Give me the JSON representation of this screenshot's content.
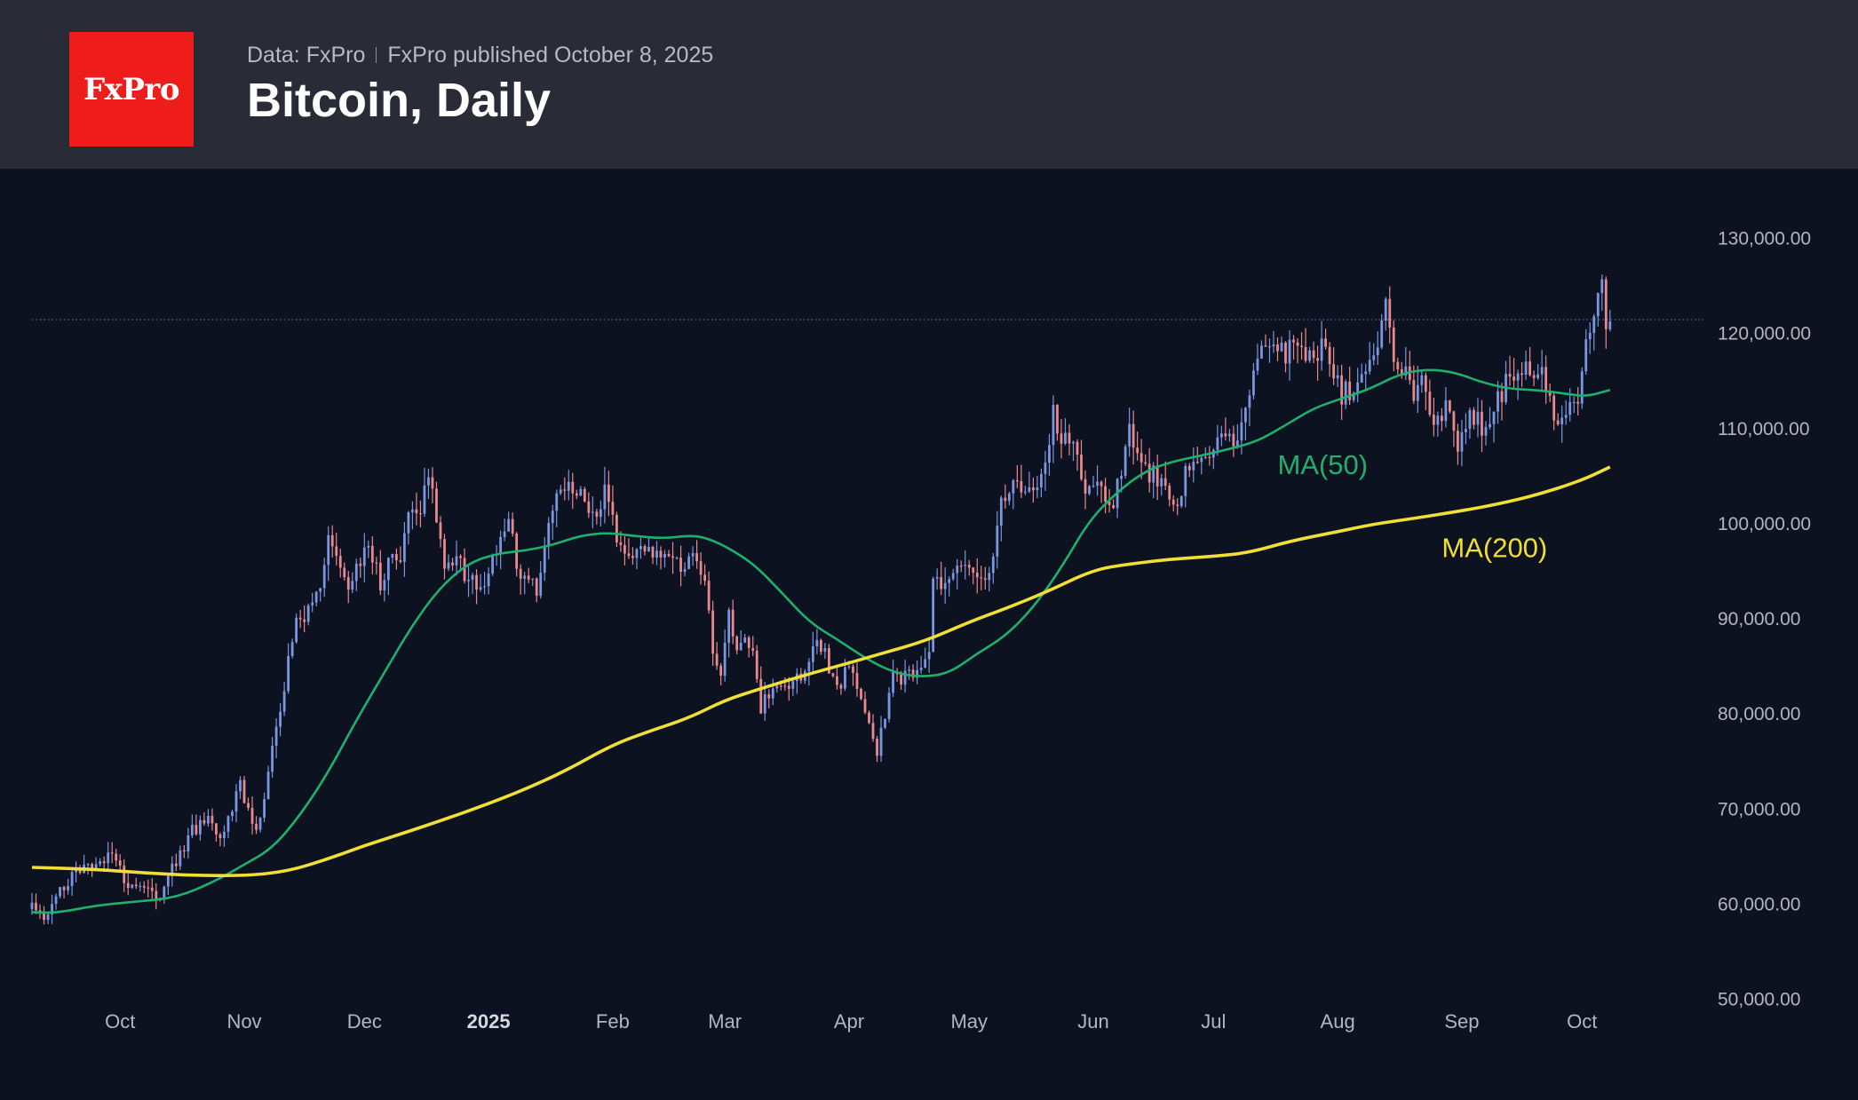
{
  "header": {
    "logo_text": "FxPro",
    "source": "Data: FxPro",
    "published": "FxPro published October 8, 2025",
    "title": "Bitcoin, Daily"
  },
  "colors": {
    "background": "#0c1220",
    "header_bg": "#292c36",
    "logo_bg": "#ef1c1c",
    "up_candle": "#7b96e0",
    "down_candle": "#e8898e",
    "ma50": "#1fb06e",
    "ma200": "#f1df35",
    "axis_text": "#b2b6c0"
  },
  "chart_data": {
    "type": "candlestick",
    "title": "Bitcoin, Daily",
    "x_ticks": [
      {
        "label": "Oct",
        "date": "2024-10-01",
        "bold": false
      },
      {
        "label": "Nov",
        "date": "2024-11-01",
        "bold": false
      },
      {
        "label": "Dec",
        "date": "2024-12-01",
        "bold": false
      },
      {
        "label": "2025",
        "date": "2025-01-01",
        "bold": true
      },
      {
        "label": "Feb",
        "date": "2025-02-01",
        "bold": false
      },
      {
        "label": "Mar",
        "date": "2025-03-01",
        "bold": false
      },
      {
        "label": "Apr",
        "date": "2025-04-01",
        "bold": false
      },
      {
        "label": "May",
        "date": "2025-05-01",
        "bold": false
      },
      {
        "label": "Jun",
        "date": "2025-06-01",
        "bold": false
      },
      {
        "label": "Jul",
        "date": "2025-07-01",
        "bold": false
      },
      {
        "label": "Aug",
        "date": "2025-08-01",
        "bold": false
      },
      {
        "label": "Sep",
        "date": "2025-09-01",
        "bold": false
      },
      {
        "label": "Oct",
        "date": "2025-10-01",
        "bold": false
      }
    ],
    "y_ticks": [
      {
        "value": 130000,
        "label": "130,000.00"
      },
      {
        "value": 120000,
        "label": "120,000.00"
      },
      {
        "value": 110000,
        "label": "110,000.00"
      },
      {
        "value": 100000,
        "label": "100,000.00"
      },
      {
        "value": 90000,
        "label": "90,000.00"
      },
      {
        "value": 80000,
        "label": "80,000.00"
      },
      {
        "value": 70000,
        "label": "70,000.00"
      },
      {
        "value": 60000,
        "label": "60,000.00"
      },
      {
        "value": 50000,
        "label": "50,000.00"
      }
    ],
    "x_range": [
      "2024-09-09",
      "2025-10-30"
    ],
    "y_range": [
      50000,
      130000
    ],
    "grid": false,
    "last_price_line": 121600,
    "close_path": [
      [
        "2024-09-09",
        60200
      ],
      [
        "2024-09-12",
        58500
      ],
      [
        "2024-09-16",
        61500
      ],
      [
        "2024-09-20",
        63500
      ],
      [
        "2024-09-25",
        64200
      ],
      [
        "2024-09-29",
        65800
      ],
      [
        "2024-10-03",
        61500
      ],
      [
        "2024-10-08",
        62300
      ],
      [
        "2024-10-11",
        60500
      ],
      [
        "2024-10-15",
        64800
      ],
      [
        "2024-10-19",
        67800
      ],
      [
        "2024-10-22",
        68800
      ],
      [
        "2024-10-24",
        69200
      ],
      [
        "2024-10-26",
        66800
      ],
      [
        "2024-10-29",
        70000
      ],
      [
        "2024-10-31",
        72500
      ],
      [
        "2024-11-02",
        69500
      ],
      [
        "2024-11-04",
        68200
      ],
      [
        "2024-11-06",
        71000
      ],
      [
        "2024-11-08",
        76500
      ],
      [
        "2024-11-10",
        80500
      ],
      [
        "2024-11-12",
        86000
      ],
      [
        "2024-11-14",
        90000
      ],
      [
        "2024-11-16",
        90500
      ],
      [
        "2024-11-19",
        92000
      ],
      [
        "2024-11-21",
        96500
      ],
      [
        "2024-11-22",
        98500
      ],
      [
        "2024-11-25",
        96000
      ],
      [
        "2024-11-27",
        92500
      ],
      [
        "2024-11-29",
        96500
      ],
      [
        "2024-12-02",
        96800
      ],
      [
        "2024-12-04",
        97000
      ],
      [
        "2024-12-05",
        93500
      ],
      [
        "2024-12-08",
        98000
      ],
      [
        "2024-12-10",
        96500
      ],
      [
        "2024-12-12",
        100500
      ],
      [
        "2024-12-15",
        101500
      ],
      [
        "2024-12-17",
        105000
      ],
      [
        "2024-12-19",
        100500
      ],
      [
        "2024-12-21",
        96000
      ],
      [
        "2024-12-24",
        97000
      ],
      [
        "2024-12-26",
        94500
      ],
      [
        "2024-12-29",
        94000
      ],
      [
        "2024-12-31",
        93500
      ],
      [
        "2025-01-03",
        97500
      ],
      [
        "2025-01-06",
        101000
      ],
      [
        "2025-01-08",
        95500
      ],
      [
        "2025-01-10",
        94500
      ],
      [
        "2025-01-13",
        93500
      ],
      [
        "2025-01-15",
        98500
      ],
      [
        "2025-01-17",
        102000
      ],
      [
        "2025-01-20",
        104500
      ],
      [
        "2025-01-22",
        103500
      ],
      [
        "2025-01-24",
        104500
      ],
      [
        "2025-01-26",
        102000
      ],
      [
        "2025-01-28",
        101000
      ],
      [
        "2025-01-30",
        103500
      ],
      [
        "2025-02-01",
        100500
      ],
      [
        "2025-02-03",
        97500
      ],
      [
        "2025-02-06",
        96500
      ],
      [
        "2025-02-09",
        97000
      ],
      [
        "2025-02-12",
        96500
      ],
      [
        "2025-02-15",
        97500
      ],
      [
        "2025-02-18",
        95500
      ],
      [
        "2025-02-21",
        97000
      ],
      [
        "2025-02-24",
        95000
      ],
      [
        "2025-02-26",
        86000
      ],
      [
        "2025-02-28",
        84500
      ],
      [
        "2025-03-02",
        90500
      ],
      [
        "2025-03-04",
        87000
      ],
      [
        "2025-03-06",
        89000
      ],
      [
        "2025-03-08",
        86000
      ],
      [
        "2025-03-10",
        80500
      ],
      [
        "2025-03-12",
        82500
      ],
      [
        "2025-03-15",
        84000
      ],
      [
        "2025-03-18",
        83500
      ],
      [
        "2025-03-21",
        85000
      ],
      [
        "2025-03-24",
        87500
      ],
      [
        "2025-03-26",
        86500
      ],
      [
        "2025-03-29",
        82500
      ],
      [
        "2025-04-01",
        85000
      ],
      [
        "2025-04-03",
        83000
      ],
      [
        "2025-04-06",
        78500
      ],
      [
        "2025-04-08",
        76500
      ],
      [
        "2025-04-10",
        79500
      ],
      [
        "2025-04-12",
        84000
      ],
      [
        "2025-04-15",
        84000
      ],
      [
        "2025-04-18",
        84500
      ],
      [
        "2025-04-21",
        87500
      ],
      [
        "2025-04-22",
        93500
      ],
      [
        "2025-04-25",
        94500
      ],
      [
        "2025-04-28",
        95000
      ],
      [
        "2025-05-01",
        96500
      ],
      [
        "2025-05-04",
        94500
      ],
      [
        "2025-05-07",
        96500
      ],
      [
        "2025-05-09",
        103000
      ],
      [
        "2025-05-12",
        104000
      ],
      [
        "2025-05-15",
        103500
      ],
      [
        "2025-05-18",
        103500
      ],
      [
        "2025-05-20",
        106000
      ],
      [
        "2025-05-22",
        111500
      ],
      [
        "2025-05-24",
        108500
      ],
      [
        "2025-05-27",
        109500
      ],
      [
        "2025-05-30",
        104000
      ],
      [
        "2025-06-02",
        105500
      ],
      [
        "2025-06-05",
        101500
      ],
      [
        "2025-06-08",
        105500
      ],
      [
        "2025-06-10",
        110000
      ],
      [
        "2025-06-12",
        106500
      ],
      [
        "2025-06-15",
        105500
      ],
      [
        "2025-06-18",
        104500
      ],
      [
        "2025-06-20",
        103500
      ],
      [
        "2025-06-22",
        101000
      ],
      [
        "2025-06-24",
        105500
      ],
      [
        "2025-06-27",
        107000
      ],
      [
        "2025-06-30",
        107500
      ],
      [
        "2025-07-03",
        109500
      ],
      [
        "2025-07-06",
        108200
      ],
      [
        "2025-07-09",
        111500
      ],
      [
        "2025-07-11",
        117500
      ],
      [
        "2025-07-14",
        119500
      ],
      [
        "2025-07-16",
        118500
      ],
      [
        "2025-07-19",
        117800
      ],
      [
        "2025-07-22",
        119500
      ],
      [
        "2025-07-25",
        117500
      ],
      [
        "2025-07-28",
        118500
      ],
      [
        "2025-07-31",
        115500
      ],
      [
        "2025-08-02",
        113500
      ],
      [
        "2025-08-05",
        114500
      ],
      [
        "2025-08-08",
        116500
      ],
      [
        "2025-08-11",
        119500
      ],
      [
        "2025-08-13",
        123500
      ],
      [
        "2025-08-15",
        117500
      ],
      [
        "2025-08-18",
        115500
      ],
      [
        "2025-08-20",
        113500
      ],
      [
        "2025-08-22",
        116500
      ],
      [
        "2025-08-25",
        111000
      ],
      [
        "2025-08-28",
        112500
      ],
      [
        "2025-08-31",
        108500
      ],
      [
        "2025-09-03",
        111500
      ],
      [
        "2025-09-06",
        110500
      ],
      [
        "2025-09-09",
        111500
      ],
      [
        "2025-09-12",
        115500
      ],
      [
        "2025-09-15",
        115500
      ],
      [
        "2025-09-18",
        117000
      ],
      [
        "2025-09-21",
        115500
      ],
      [
        "2025-09-23",
        112500
      ],
      [
        "2025-09-25",
        109500
      ],
      [
        "2025-09-28",
        112200
      ],
      [
        "2025-09-30",
        114000
      ],
      [
        "2025-10-02",
        120500
      ],
      [
        "2025-10-04",
        122500
      ],
      [
        "2025-10-06",
        125000
      ],
      [
        "2025-10-07",
        121500
      ],
      [
        "2025-10-08",
        121600
      ]
    ],
    "series": [
      {
        "name": "MA(50)",
        "points": [
          [
            "2024-09-09",
            59300
          ],
          [
            "2024-09-15",
            59200
          ],
          [
            "2024-09-25",
            60000
          ],
          [
            "2024-10-05",
            60400
          ],
          [
            "2024-10-15",
            60800
          ],
          [
            "2024-10-25",
            62600
          ],
          [
            "2024-11-01",
            64300
          ],
          [
            "2024-11-08",
            66000
          ],
          [
            "2024-11-15",
            69500
          ],
          [
            "2024-11-22",
            74000
          ],
          [
            "2024-11-29",
            79500
          ],
          [
            "2024-12-06",
            84500
          ],
          [
            "2024-12-13",
            89500
          ],
          [
            "2024-12-20",
            93500
          ],
          [
            "2024-12-27",
            96000
          ],
          [
            "2025-01-03",
            97000
          ],
          [
            "2025-01-10",
            97300
          ],
          [
            "2025-01-17",
            97900
          ],
          [
            "2025-01-24",
            98900
          ],
          [
            "2025-01-31",
            99200
          ],
          [
            "2025-02-07",
            98800
          ],
          [
            "2025-02-14",
            98600
          ],
          [
            "2025-02-20",
            98900
          ],
          [
            "2025-02-24",
            98700
          ],
          [
            "2025-03-01",
            97800
          ],
          [
            "2025-03-08",
            96000
          ],
          [
            "2025-03-15",
            93000
          ],
          [
            "2025-03-22",
            89800
          ],
          [
            "2025-03-29",
            88000
          ],
          [
            "2025-04-05",
            86000
          ],
          [
            "2025-04-12",
            84500
          ],
          [
            "2025-04-19",
            84000
          ],
          [
            "2025-04-26",
            84400
          ],
          [
            "2025-05-03",
            86500
          ],
          [
            "2025-05-10",
            88300
          ],
          [
            "2025-05-17",
            91300
          ],
          [
            "2025-05-24",
            95500
          ],
          [
            "2025-05-31",
            100500
          ],
          [
            "2025-06-07",
            103500
          ],
          [
            "2025-06-14",
            105700
          ],
          [
            "2025-06-21",
            106700
          ],
          [
            "2025-06-28",
            107300
          ],
          [
            "2025-07-05",
            108000
          ],
          [
            "2025-07-12",
            108800
          ],
          [
            "2025-07-19",
            110500
          ],
          [
            "2025-07-26",
            112300
          ],
          [
            "2025-08-02",
            113300
          ],
          [
            "2025-08-09",
            114300
          ],
          [
            "2025-08-16",
            115800
          ],
          [
            "2025-08-23",
            116400
          ],
          [
            "2025-08-30",
            116100
          ],
          [
            "2025-09-06",
            115000
          ],
          [
            "2025-09-13",
            114300
          ],
          [
            "2025-09-20",
            114200
          ],
          [
            "2025-09-27",
            113800
          ],
          [
            "2025-10-02",
            113500
          ],
          [
            "2025-10-08",
            114200
          ]
        ]
      },
      {
        "name": "MA(200)",
        "points": [
          [
            "2024-09-09",
            64000
          ],
          [
            "2024-09-25",
            63800
          ],
          [
            "2024-10-15",
            63200
          ],
          [
            "2024-11-01",
            63100
          ],
          [
            "2024-11-12",
            63600
          ],
          [
            "2024-11-22",
            64900
          ],
          [
            "2024-12-01",
            66300
          ],
          [
            "2024-12-10",
            67500
          ],
          [
            "2024-12-20",
            68900
          ],
          [
            "2025-01-01",
            70700
          ],
          [
            "2025-01-10",
            72200
          ],
          [
            "2025-01-20",
            74100
          ],
          [
            "2025-02-01",
            76900
          ],
          [
            "2025-02-10",
            78300
          ],
          [
            "2025-02-20",
            79700
          ],
          [
            "2025-03-01",
            81600
          ],
          [
            "2025-03-10",
            82800
          ],
          [
            "2025-03-20",
            84100
          ],
          [
            "2025-04-01",
            85500
          ],
          [
            "2025-04-10",
            86600
          ],
          [
            "2025-04-20",
            87800
          ],
          [
            "2025-05-01",
            89800
          ],
          [
            "2025-05-10",
            91200
          ],
          [
            "2025-05-20",
            92900
          ],
          [
            "2025-06-01",
            95300
          ],
          [
            "2025-06-10",
            95900
          ],
          [
            "2025-06-20",
            96400
          ],
          [
            "2025-07-01",
            96700
          ],
          [
            "2025-07-10",
            97100
          ],
          [
            "2025-07-20",
            98300
          ],
          [
            "2025-08-01",
            99300
          ],
          [
            "2025-08-10",
            100100
          ],
          [
            "2025-08-20",
            100700
          ],
          [
            "2025-09-01",
            101500
          ],
          [
            "2025-09-10",
            102200
          ],
          [
            "2025-09-20",
            103200
          ],
          [
            "2025-10-01",
            104700
          ],
          [
            "2025-10-08",
            106100
          ]
        ]
      }
    ],
    "annotations": [
      {
        "text": "MA(50)",
        "date": "2025-07-17",
        "value": 106100,
        "color": "#1fb06e"
      },
      {
        "text": "MA(200)",
        "date": "2025-08-27",
        "value": 97400,
        "color": "#f1df35"
      }
    ]
  }
}
